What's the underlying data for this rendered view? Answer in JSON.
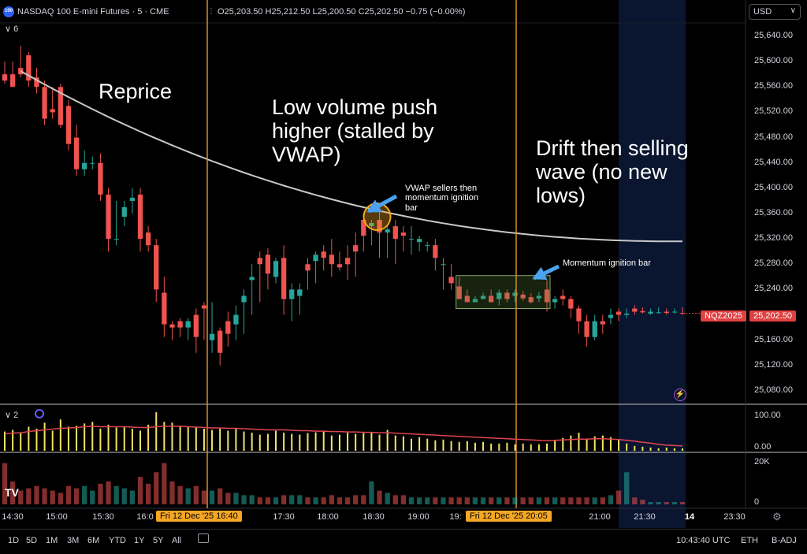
{
  "header": {
    "logo_text": "100",
    "symbol": "NASDAQ 100 E-mini Futures · 5 · CME",
    "ohlc": "O25,203.50 H25,212.50 L25,200.50 C25,202.50 −0.75 (−0.00%)",
    "collapse_label": "6",
    "currency": "USD"
  },
  "panes": {
    "volume_pane_label": "2"
  },
  "price_axis": {
    "ticks": [
      "25,640.00",
      "25,600.00",
      "25,560.00",
      "25,520.00",
      "25,480.00",
      "25,440.00",
      "25,400.00",
      "25,360.00",
      "25,320.00",
      "25,280.00",
      "25,240.00",
      "25,160.00",
      "25,120.00",
      "25,080.00"
    ],
    "last_symbol": "NQZ2025",
    "last_price": "25,202.50"
  },
  "indicator_axis": {
    "ticks": [
      "100.00",
      "0.00"
    ]
  },
  "volume_axis": {
    "ticks": [
      "20K",
      "0"
    ]
  },
  "time_axis": {
    "ticks": [
      "14:30",
      "15:00",
      "15:30",
      "16:0",
      "17:30",
      "18:00",
      "18:30",
      "19:00",
      "19:",
      "21:00",
      "21:30",
      "14",
      "23:30"
    ],
    "crosshair_1": "Fri 12 Dec '25   16:40",
    "crosshair_2": "Fri 12 Dec '25   20:05"
  },
  "annotations": {
    "reprice": "Reprice",
    "low_volume": "Low volume push\nhigher (stalled by\nVWAP)",
    "drift": "Drift then selling\nwave (no new\nlows)",
    "vwap_sellers": "VWAP sellers then\nmomentum ignition\nbar",
    "momentum_bar": "Momentum ignition bar"
  },
  "bottom_bar": {
    "ranges": [
      "1D",
      "5D",
      "1M",
      "3M",
      "6M",
      "YTD",
      "1Y",
      "5Y",
      "All"
    ],
    "clock": "10:43:40 UTC",
    "session": "ETH",
    "adjust": "B-ADJ"
  },
  "colors": {
    "up": "#26a69a",
    "down": "#ef5350",
    "crosshair": "#d98e2c",
    "vwap": "#c8c8c8",
    "volume_osc": "#f5e36a",
    "volume_osc_ma": "#e0444f",
    "price_badge": "#e04040"
  },
  "chart_data": {
    "type": "candlestick",
    "price_range": [
      25060,
      25660
    ],
    "candles": [
      [
        25580,
        25600,
        25570,
        25565
      ],
      [
        25580,
        25600,
        25560,
        25575
      ],
      [
        25590,
        25625,
        25580,
        25575
      ],
      [
        25610,
        25615,
        25570,
        25560
      ],
      [
        25575,
        25590,
        25560,
        25550
      ],
      [
        25560,
        25570,
        25510,
        25500
      ],
      [
        25525,
        25560,
        25520,
        25510
      ],
      [
        25560,
        25565,
        25500,
        25495
      ],
      [
        25530,
        25540,
        25470,
        25460
      ],
      [
        25480,
        25500,
        25430,
        25420
      ],
      [
        25430,
        25460,
        25440,
        25420
      ],
      [
        25440,
        25450,
        25440,
        25430
      ],
      [
        25440,
        25455,
        25390,
        25380
      ],
      [
        25390,
        25400,
        25320,
        25300
      ],
      [
        25320,
        25380,
        25320,
        25310
      ],
      [
        25355,
        25380,
        25370,
        25340
      ],
      [
        25380,
        25400,
        25385,
        25360
      ],
      [
        25390,
        25400,
        25320,
        25300
      ],
      [
        25330,
        25340,
        25310,
        25300
      ],
      [
        25310,
        25320,
        25240,
        25220
      ],
      [
        25235,
        25260,
        25185,
        25165
      ],
      [
        25185,
        25190,
        25180,
        25160
      ],
      [
        25190,
        25195,
        25180,
        25165
      ],
      [
        25180,
        25195,
        25190,
        25160
      ],
      [
        25200,
        25210,
        25165,
        25140
      ],
      [
        25215,
        25220,
        25210,
        25160
      ],
      [
        25160,
        25220,
        25170,
        25140
      ],
      [
        25175,
        25180,
        25140,
        25120
      ],
      [
        25190,
        25205,
        25170,
        25150
      ],
      [
        25185,
        25215,
        25200,
        25160
      ],
      [
        25220,
        25240,
        25230,
        25170
      ],
      [
        25255,
        25280,
        25260,
        25200
      ],
      [
        25290,
        25300,
        25280,
        25220
      ],
      [
        25295,
        25305,
        25265,
        25240
      ],
      [
        25260,
        25290,
        25285,
        25250
      ],
      [
        25290,
        25310,
        25225,
        25200
      ],
      [
        25225,
        25250,
        25240,
        25190
      ],
      [
        25230,
        25250,
        25240,
        25200
      ],
      [
        25280,
        25290,
        25270,
        25240
      ],
      [
        25285,
        25300,
        25295,
        25250
      ],
      [
        25300,
        25310,
        25290,
        25270
      ],
      [
        25295,
        25320,
        25280,
        25260
      ],
      [
        25280,
        25300,
        25275,
        25270
      ],
      [
        25290,
        25310,
        25280,
        25255
      ],
      [
        25310,
        25330,
        25300,
        25260
      ],
      [
        25350,
        25360,
        25325,
        25300
      ],
      [
        25340,
        25350,
        25345,
        25310
      ],
      [
        25350,
        25370,
        25330,
        25290
      ],
      [
        25330,
        25340,
        25335,
        25290
      ],
      [
        25340,
        25350,
        25320,
        25280
      ],
      [
        25330,
        25340,
        25325,
        25300
      ],
      [
        25320,
        25340,
        25320,
        25295
      ],
      [
        25315,
        25325,
        25320,
        25300
      ],
      [
        25310,
        25315,
        25310,
        25300
      ],
      [
        25310,
        25320,
        25290,
        25270
      ],
      [
        25280,
        25290,
        25280,
        25240
      ],
      [
        25260,
        25280,
        25250,
        25240
      ],
      [
        25245,
        25260,
        25225,
        25230
      ],
      [
        25230,
        25240,
        25220,
        25220
      ],
      [
        25220,
        25230,
        25225,
        25220
      ],
      [
        25225,
        25235,
        25230,
        25225
      ],
      [
        25230,
        25240,
        25220,
        25225
      ],
      [
        25225,
        25240,
        25235,
        25215
      ],
      [
        25235,
        25240,
        25225,
        25220
      ],
      [
        25230,
        25240,
        25235,
        25220
      ],
      [
        25232,
        25238,
        25226,
        25222
      ],
      [
        25228,
        25234,
        25220,
        25218
      ],
      [
        25226,
        25236,
        25230,
        25220
      ],
      [
        25240,
        25255,
        25220,
        25205
      ],
      [
        25220,
        25230,
        25225,
        25210
      ],
      [
        25230,
        25240,
        25225,
        25215
      ],
      [
        25225,
        25230,
        25210,
        25195
      ],
      [
        25210,
        25215,
        25190,
        25170
      ],
      [
        25190,
        25200,
        25165,
        25150
      ],
      [
        25165,
        25200,
        25190,
        25160
      ],
      [
        25190,
        25200,
        25185,
        25170
      ],
      [
        25195,
        25210,
        25200,
        25185
      ],
      [
        25205,
        25210,
        25200,
        25190
      ],
      [
        25200,
        25210,
        25202,
        25195
      ],
      [
        25210,
        25215,
        25205,
        25200
      ],
      [
        25206,
        25212,
        25204,
        25202
      ],
      [
        25202,
        25210,
        25205,
        25200
      ],
      [
        25203,
        25212,
        25204,
        25202
      ],
      [
        25205,
        25210,
        25203,
        25200
      ],
      [
        25204,
        25210,
        25205,
        25202
      ],
      [
        25203,
        25212,
        25202,
        25200
      ]
    ],
    "vwap_start": 25585,
    "vwap_end": 25316,
    "volume_osc": [
      48,
      52,
      45,
      60,
      55,
      70,
      50,
      78,
      60,
      62,
      68,
      72,
      55,
      65,
      58,
      60,
      55,
      50,
      65,
      96,
      72,
      70,
      62,
      60,
      58,
      55,
      52,
      55,
      50,
      55,
      48,
      45,
      40,
      42,
      50,
      45,
      42,
      40,
      44,
      46,
      48,
      38,
      40,
      45,
      42,
      44,
      46,
      40,
      52,
      38,
      36,
      30,
      34,
      30,
      26,
      28,
      24,
      22,
      24,
      20,
      22,
      18,
      18,
      20,
      16,
      18,
      16,
      16,
      18,
      26,
      32,
      38,
      45,
      30,
      36,
      38,
      34,
      28,
      18,
      12,
      10,
      8,
      6,
      8,
      6,
      6
    ],
    "volume_ma": [
      42,
      44,
      45,
      48,
      50,
      52,
      54,
      56,
      57,
      58,
      60,
      61,
      60,
      60,
      60,
      60,
      59,
      58,
      58,
      60,
      61,
      61,
      61,
      60,
      59,
      58,
      57,
      57,
      56,
      56,
      55,
      54,
      53,
      52,
      52,
      52,
      51,
      50,
      50,
      49,
      49,
      48,
      48,
      47,
      47,
      46,
      46,
      45,
      45,
      44,
      43,
      42,
      41,
      40,
      39,
      38,
      37,
      36,
      35,
      34,
      33,
      32,
      31,
      30,
      29,
      28,
      27,
      26,
      25,
      26,
      27,
      28,
      29,
      29,
      30,
      30,
      29,
      28,
      26,
      24,
      21,
      19,
      16,
      14,
      13,
      12
    ],
    "volume": [
      18,
      10,
      6,
      7,
      8,
      7,
      6,
      5,
      8,
      7,
      8,
      6,
      9,
      10,
      8,
      7,
      6,
      12,
      9,
      14,
      18,
      10,
      8,
      7,
      8,
      6,
      6,
      7,
      5,
      5,
      4,
      4,
      3,
      3,
      3,
      4,
      4,
      4,
      3,
      3,
      3,
      4,
      3,
      3,
      4,
      4,
      10,
      6,
      5,
      4,
      4,
      3,
      3,
      3,
      3,
      3,
      3,
      3,
      3,
      3,
      3,
      3,
      3,
      3,
      3,
      3,
      3,
      3,
      3,
      3,
      3,
      3,
      3,
      3,
      3,
      3,
      4,
      6,
      14,
      3,
      2,
      1,
      1,
      1,
      1,
      1
    ]
  }
}
